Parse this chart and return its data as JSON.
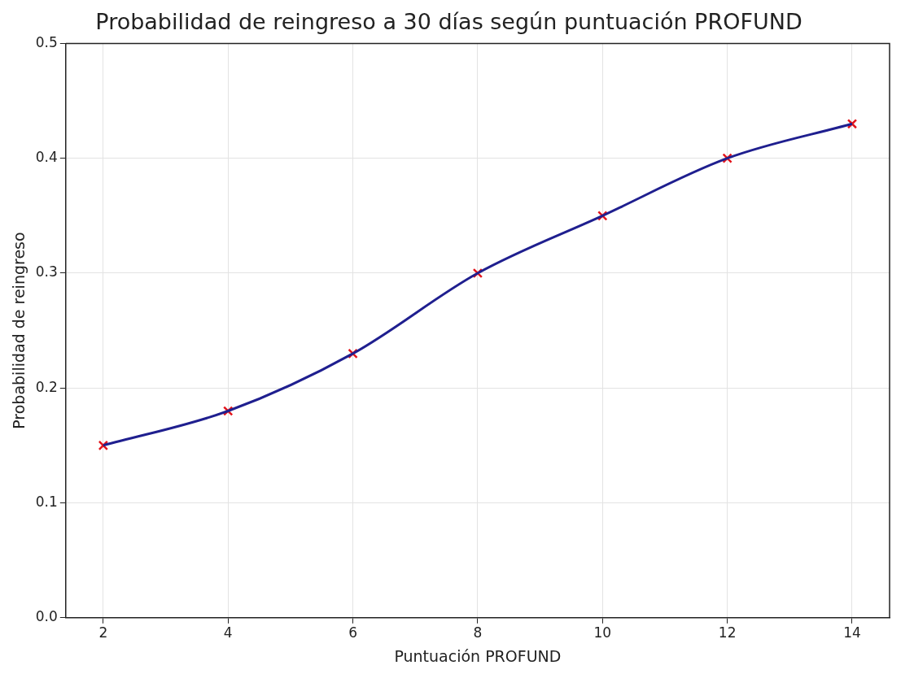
{
  "chart_data": {
    "type": "line",
    "title": "Probabilidad de reingreso a 30 días según puntuación PROFUND",
    "xlabel": "Puntuación PROFUND",
    "ylabel": "Probabilidad de reingreso",
    "x": [
      2,
      4,
      6,
      8,
      10,
      12,
      14
    ],
    "series": [
      {
        "type": "line",
        "color": "#1f1f8f",
        "marker": "none",
        "values": [
          0.15,
          0.18,
          0.23,
          0.3,
          0.35,
          0.4,
          0.43
        ]
      },
      {
        "type": "scatter",
        "color": "#e3141b",
        "marker": "cross",
        "values": [
          0.15,
          0.18,
          0.23,
          0.3,
          0.35,
          0.4,
          0.43
        ]
      }
    ],
    "xlim": [
      1.4,
      14.6
    ],
    "xticks": [
      2,
      4,
      6,
      8,
      10,
      12,
      14
    ],
    "ylim": [
      0,
      0.5
    ],
    "yticks": [
      {
        "value": 0,
        "label": "0.0"
      },
      0.1,
      0.2,
      0.3,
      0.4,
      0.5
    ],
    "grid": true,
    "legend": false
  }
}
